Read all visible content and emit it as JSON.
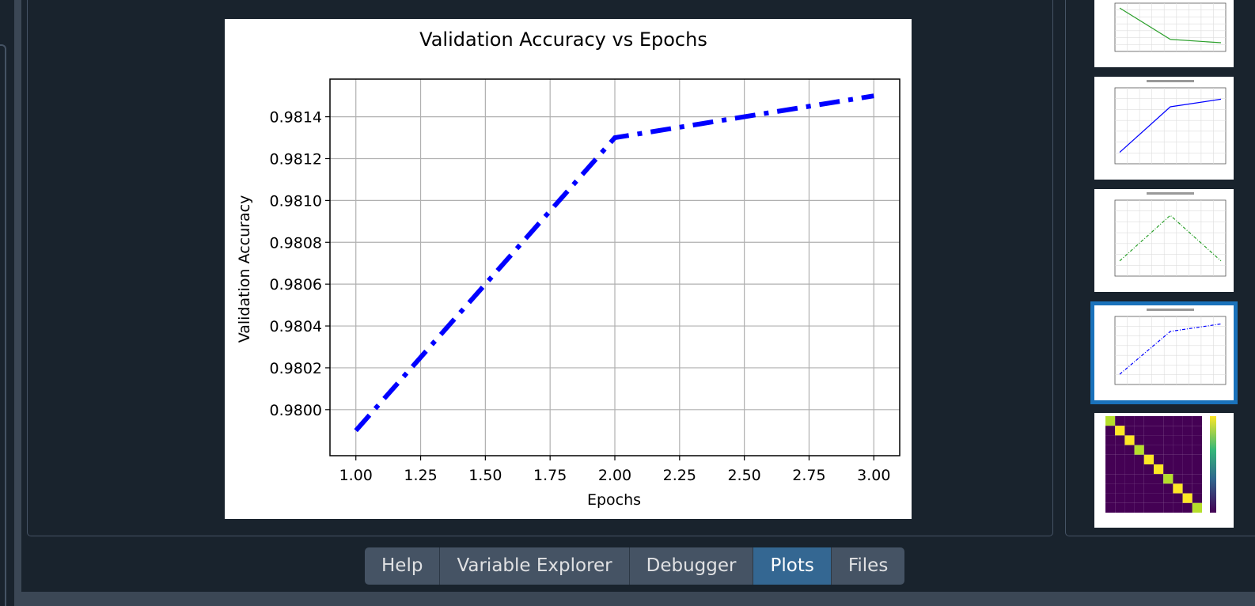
{
  "chart_data": {
    "type": "line",
    "title": "Validation Accuracy vs Epochs",
    "xlabel": "Epochs",
    "ylabel": "Validation Accuracy",
    "x": [
      1.0,
      2.0,
      3.0
    ],
    "series": [
      {
        "values": [
          0.9799,
          0.9813,
          0.9815
        ],
        "color": "#0000ff",
        "linestyle": "dashdot"
      }
    ],
    "xlim": [
      0.9,
      3.1
    ],
    "ylim": [
      0.97978,
      0.98158
    ],
    "xticks": [
      1.0,
      1.25,
      1.5,
      1.75,
      2.0,
      2.25,
      2.5,
      2.75,
      3.0
    ],
    "xtick_labels": [
      "1.00",
      "1.25",
      "1.50",
      "1.75",
      "2.00",
      "2.25",
      "2.50",
      "2.75",
      "3.00"
    ],
    "yticks": [
      0.98,
      0.9802,
      0.9804,
      0.9806,
      0.9808,
      0.981,
      0.9812,
      0.9814
    ],
    "ytick_labels": [
      "0.9800",
      "0.9802",
      "0.9804",
      "0.9806",
      "0.9808",
      "0.9810",
      "0.9812",
      "0.9814"
    ],
    "grid": true
  },
  "thumbnails": [
    {
      "kind": "line",
      "color": "#2ca02c",
      "linestyle": "solid",
      "values": [
        0.9,
        0.25,
        0.18
      ]
    },
    {
      "kind": "line",
      "color": "#0000ff",
      "linestyle": "solid",
      "values": [
        0.15,
        0.75,
        0.85
      ]
    },
    {
      "kind": "line",
      "color": "#2ca02c",
      "linestyle": "dashdot",
      "values": [
        0.2,
        0.8,
        0.2
      ]
    },
    {
      "kind": "line",
      "color": "#0000ff",
      "linestyle": "dashdot",
      "values": [
        0.15,
        0.78,
        0.89
      ],
      "selected": true
    },
    {
      "kind": "heatmap"
    }
  ],
  "tabs": [
    {
      "label": "Help",
      "active": false
    },
    {
      "label": "Variable Explorer",
      "active": false
    },
    {
      "label": "Debugger",
      "active": false
    },
    {
      "label": "Plots",
      "active": true
    },
    {
      "label": "Files",
      "active": false
    }
  ],
  "colors": {
    "background": "#19232d",
    "border": "#455364",
    "tab": "#455364",
    "tab_active": "#346792",
    "selection": "#1a72bb"
  }
}
